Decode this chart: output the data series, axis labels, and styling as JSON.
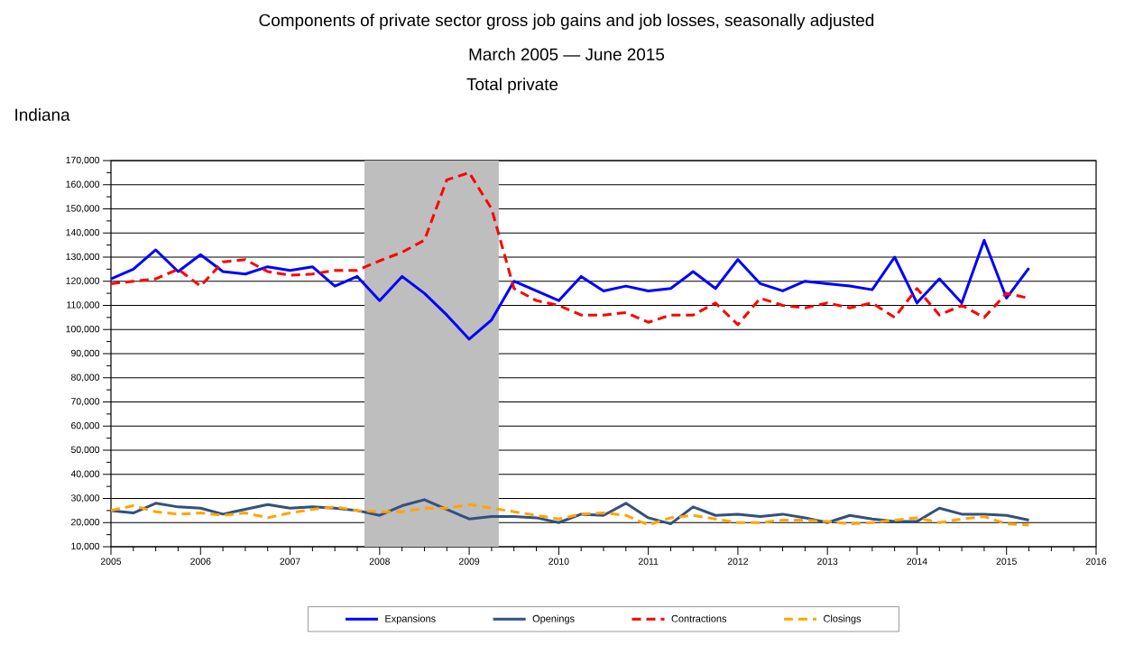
{
  "chart_data": {
    "type": "line",
    "title": "Components of private sector gross job gains and job losses, seasonally adjusted",
    "subtitle": "March 2005 — June 2015",
    "annotations": [
      "Total private",
      "Indiana"
    ],
    "x": [
      2005,
      2005.25,
      2005.5,
      2005.75,
      2006,
      2006.25,
      2006.5,
      2006.75,
      2007,
      2007.25,
      2007.5,
      2007.75,
      2008,
      2008.25,
      2008.5,
      2008.75,
      2009,
      2009.25,
      2009.5,
      2009.75,
      2010,
      2010.25,
      2010.5,
      2010.75,
      2011,
      2011.25,
      2011.5,
      2011.75,
      2012,
      2012.25,
      2012.5,
      2012.75,
      2013,
      2013.25,
      2013.5,
      2013.75,
      2014,
      2014.25,
      2014.5,
      2014.75,
      2015,
      2015.25
    ],
    "series": [
      {
        "name": "Expansions",
        "color": "#0000ff",
        "line_style": "solid",
        "values": [
          121000,
          125000,
          133000,
          124000,
          131000,
          124000,
          123000,
          126000,
          124500,
          126000,
          118000,
          122000,
          112000,
          122000,
          115000,
          106000,
          96000,
          104000,
          120000,
          116000,
          112000,
          122000,
          116000,
          118000,
          116000,
          117000,
          124000,
          117000,
          129000,
          119000,
          116000,
          120000,
          119000,
          118000,
          116500,
          130000,
          111000,
          121000,
          111000,
          137000,
          113000,
          125500
        ]
      },
      {
        "name": "Openings",
        "color": "#335080",
        "line_style": "solid",
        "values": [
          25000,
          24000,
          28000,
          26500,
          26000,
          23500,
          25500,
          27500,
          26000,
          26500,
          26000,
          25000,
          23000,
          27000,
          29500,
          25500,
          21500,
          22500,
          22500,
          22000,
          20000,
          23500,
          23000,
          28000,
          22000,
          19500,
          26500,
          23000,
          23500,
          22500,
          23500,
          22000,
          20000,
          23000,
          21500,
          20500,
          20500,
          26000,
          23500,
          23500,
          23000,
          21000
        ]
      },
      {
        "name": "Contractions",
        "color": "#ff0000",
        "line_style": "dashed",
        "values": [
          119000,
          120000,
          121000,
          125000,
          118000,
          128000,
          129000,
          124000,
          122500,
          123000,
          124500,
          124500,
          128500,
          132000,
          137000,
          162000,
          165000,
          150000,
          117000,
          112000,
          110000,
          106000,
          106000,
          107000,
          103000,
          106000,
          106000,
          111000,
          102000,
          113000,
          110000,
          109000,
          111000,
          109000,
          111000,
          105000,
          117000,
          106000,
          110000,
          105000,
          115000,
          113000
        ]
      },
      {
        "name": "Closings",
        "color": "#ffa500",
        "line_style": "dashed",
        "values": [
          25000,
          27000,
          24500,
          23500,
          24000,
          23000,
          24000,
          22000,
          24000,
          25500,
          26500,
          25000,
          24500,
          24500,
          26000,
          26000,
          27500,
          26000,
          24500,
          23000,
          21500,
          23500,
          24000,
          23000,
          19000,
          22000,
          23000,
          21500,
          20000,
          20000,
          21000,
          21000,
          20500,
          19500,
          20000,
          21000,
          22000,
          20000,
          21500,
          22500,
          19500,
          19000
        ]
      }
    ],
    "xlim": [
      2005,
      2016
    ],
    "xticks": [
      2005,
      2006,
      2007,
      2008,
      2009,
      2010,
      2011,
      2012,
      2013,
      2014,
      2015,
      2016
    ],
    "ylim": [
      10000,
      170000
    ],
    "yticks": [
      {
        "value": 10000,
        "label": "10,000"
      },
      {
        "value": 20000,
        "label": "20,000"
      },
      {
        "value": 30000,
        "label": "30,000"
      },
      {
        "value": 40000,
        "label": "40,000"
      },
      {
        "value": 50000,
        "label": "50,000"
      },
      {
        "value": 60000,
        "label": "60,000"
      },
      {
        "value": 70000,
        "label": "70,000"
      },
      {
        "value": 80000,
        "label": "80,000"
      },
      {
        "value": 90000,
        "label": "90,000"
      },
      {
        "value": 100000,
        "label": "100,000"
      },
      {
        "value": 110000,
        "label": "110,000"
      },
      {
        "value": 120000,
        "label": "120,000"
      },
      {
        "value": 130000,
        "label": "130,000"
      },
      {
        "value": 140000,
        "label": "140,000"
      },
      {
        "value": 150000,
        "label": "150,000"
      },
      {
        "value": 160000,
        "label": "160,000"
      },
      {
        "value": 170000,
        "label": "170,000"
      }
    ],
    "bands": [
      {
        "axis": "x",
        "from": 2007.83,
        "to": 2009.33,
        "color": "#bebebe"
      }
    ],
    "grid": "y",
    "legend": "bottom",
    "marker": "none"
  }
}
